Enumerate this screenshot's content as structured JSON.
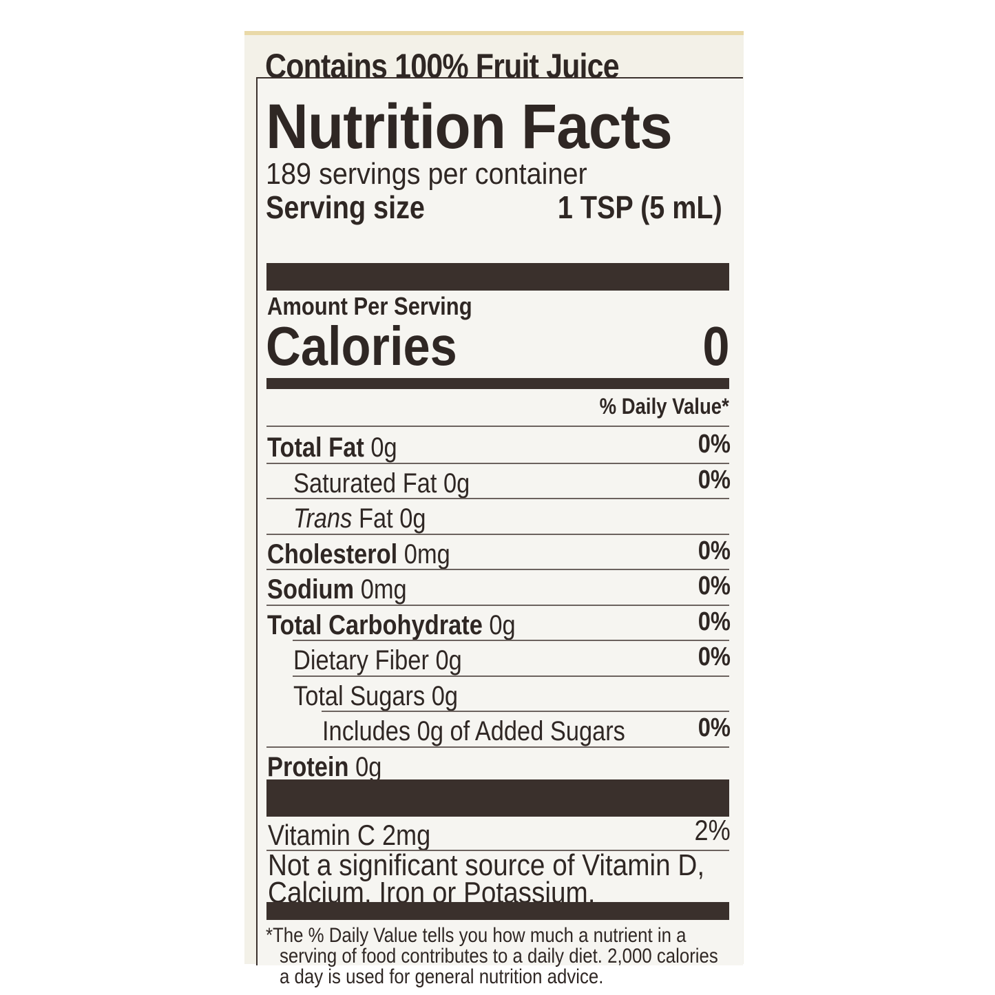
{
  "header": "Contains 100% Fruit Juice",
  "title": "Nutrition Facts",
  "servings_per_container": "189 servings per container",
  "serving_size": {
    "label": "Serving size",
    "value": "1 TSP (5 mL)"
  },
  "amount_per_serving": "Amount Per Serving",
  "calories": {
    "label": "Calories",
    "value": "0"
  },
  "daily_value_header": "% Daily Value*",
  "nutrients": [
    {
      "name": "Total Fat",
      "amount": "0g",
      "dv": "0%"
    },
    {
      "name": "Saturated Fat",
      "amount": "0g",
      "dv": "0%"
    },
    {
      "name": "Trans",
      "name_suffix": "Fat",
      "amount": "0g",
      "dv": ""
    },
    {
      "name": "Cholesterol",
      "amount": "0mg",
      "dv": "0%"
    },
    {
      "name": "Sodium",
      "amount": "0mg",
      "dv": "0%"
    },
    {
      "name": "Total Carbohydrate",
      "amount": "0g",
      "dv": "0%"
    },
    {
      "name": "Dietary Fiber",
      "amount": "0g",
      "dv": "0%"
    },
    {
      "name": "Total Sugars",
      "amount": "0g",
      "dv": ""
    },
    {
      "name": "Includes 0g of Added Sugars",
      "amount": "",
      "dv": "0%"
    },
    {
      "name": "Protein",
      "amount": "0g",
      "dv": ""
    }
  ],
  "vitamins": [
    {
      "name": "Vitamin C 2mg",
      "dv": "2%"
    }
  ],
  "not_significant": [
    "Not a significant source of Vitamin D,",
    "Calcium, Iron or Potassium."
  ],
  "footnote": [
    "*The % Daily Value tells you how much a nutrient in a",
    "serving of food contributes to a daily diet. 2,000 calories",
    "a day is used for general nutrition advice."
  ]
}
